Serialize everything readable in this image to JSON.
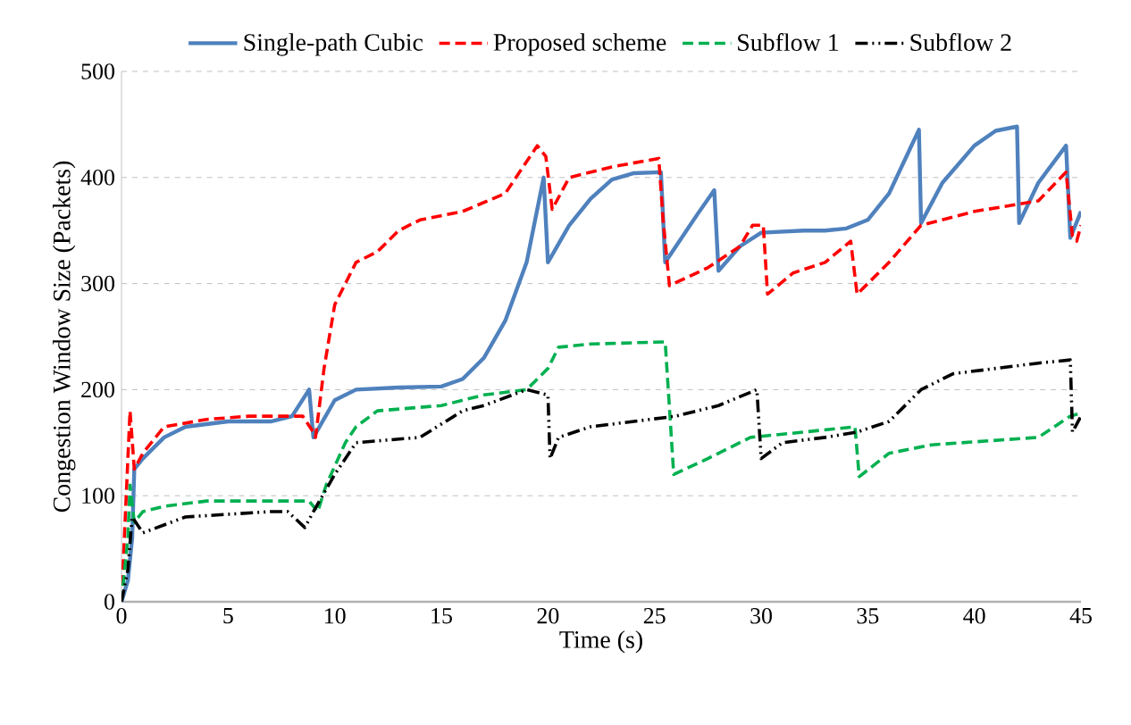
{
  "chart_data": {
    "type": "line",
    "xlabel": "Time (s)",
    "ylabel": "Congestion Window Size (Packets)",
    "xlim": [
      0,
      45
    ],
    "ylim": [
      0,
      500
    ],
    "xticks": [
      0,
      5,
      10,
      15,
      20,
      25,
      30,
      35,
      40,
      45
    ],
    "yticks": [
      0,
      100,
      200,
      300,
      400,
      500
    ],
    "grid": "y",
    "legend": "top",
    "series": [
      {
        "name": "Single-path Cubic",
        "color": "#4f81bd",
        "line_style": "solid",
        "x": [
          0,
          0.3,
          0.5,
          0.6,
          1,
          2,
          3,
          5,
          7,
          8,
          8.8,
          9,
          10,
          11,
          13,
          15,
          16,
          17,
          18,
          19,
          19.8,
          20,
          21,
          22,
          23,
          24,
          25.3,
          25.5,
          26,
          27,
          27.8,
          28,
          29,
          30,
          32,
          33,
          34,
          35,
          36,
          37.4,
          37.5,
          38.5,
          40,
          41,
          42,
          42.1,
          43,
          44.3,
          44.5,
          45
        ],
        "values": [
          0,
          20,
          60,
          125,
          135,
          155,
          165,
          170,
          170,
          175,
          200,
          155,
          190,
          200,
          202,
          203,
          210,
          230,
          265,
          320,
          400,
          320,
          355,
          380,
          398,
          404,
          405,
          320,
          335,
          365,
          388,
          312,
          335,
          348,
          350,
          350,
          352,
          360,
          385,
          445,
          357,
          395,
          430,
          444,
          448,
          357,
          395,
          430,
          343,
          368
        ]
      },
      {
        "name": "Proposed scheme",
        "color": "#ff0000",
        "line_style": "dashed",
        "x": [
          0,
          0.4,
          0.6,
          1,
          2,
          4,
          6,
          8.5,
          9,
          9.1,
          9.5,
          10,
          10.5,
          11,
          12,
          13,
          14,
          16,
          18,
          19.5,
          19.9,
          20.2,
          21,
          23,
          25.2,
          25.4,
          25.7,
          27.5,
          29,
          29.6,
          30.1,
          30.3,
          31.5,
          33,
          34.2,
          34.5,
          36,
          37.5,
          40,
          43,
          44.3,
          44.6,
          44.8,
          45
        ],
        "values": [
          0,
          180,
          125,
          140,
          165,
          172,
          175,
          175,
          160,
          155,
          220,
          280,
          300,
          320,
          330,
          350,
          360,
          368,
          385,
          430,
          420,
          370,
          400,
          410,
          418,
          360,
          298,
          315,
          335,
          355,
          355,
          290,
          310,
          320,
          340,
          290,
          320,
          355,
          368,
          378,
          405,
          345,
          340,
          355
        ]
      },
      {
        "name": "Subflow 1",
        "color": "#00b050",
        "line_style": "dashed",
        "x": [
          0,
          0.3,
          0.4,
          0.6,
          1,
          2,
          4,
          6,
          8.8,
          9.2,
          9.6,
          10.5,
          11,
          12,
          15,
          17,
          19,
          20,
          20.5,
          22,
          25.5,
          25.9,
          27.5,
          29.5,
          32,
          34.4,
          34.6,
          36,
          38,
          43,
          44.5,
          45
        ],
        "values": [
          0,
          60,
          110,
          75,
          85,
          90,
          95,
          95,
          95,
          85,
          110,
          150,
          165,
          180,
          185,
          195,
          200,
          220,
          240,
          243,
          245,
          120,
          135,
          155,
          160,
          165,
          118,
          140,
          148,
          155,
          175,
          178
        ]
      },
      {
        "name": "Subflow 2",
        "color": "#000000",
        "line_style": "dotted",
        "x": [
          0,
          0.3,
          0.5,
          1,
          3,
          7,
          7.8,
          8.6,
          9,
          10,
          11,
          14,
          16,
          17,
          19,
          20,
          20.1,
          20.5,
          22,
          26,
          28,
          29.8,
          30,
          31,
          33,
          34.5,
          36,
          37.5,
          39,
          43,
          44.5,
          44.6,
          45
        ],
        "values": [
          0,
          30,
          80,
          65,
          80,
          85,
          85,
          70,
          85,
          120,
          150,
          155,
          180,
          185,
          200,
          195,
          135,
          155,
          165,
          175,
          185,
          200,
          135,
          150,
          155,
          160,
          170,
          200,
          215,
          225,
          228,
          160,
          175
        ]
      }
    ]
  }
}
